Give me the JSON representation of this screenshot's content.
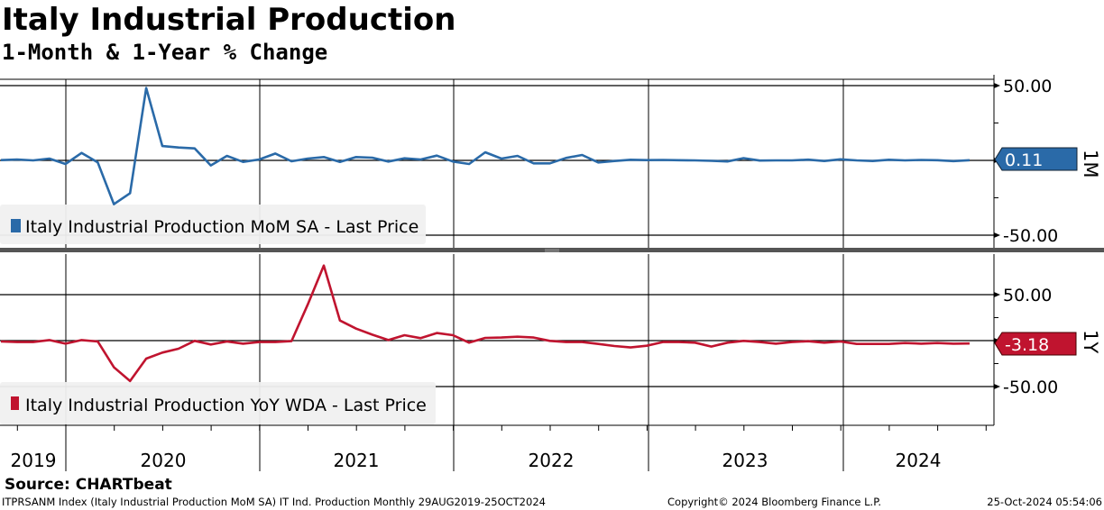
{
  "header": {
    "title": "Italy Industrial Production",
    "subtitle": "1-Month & 1-Year % Change"
  },
  "chart_data": [
    {
      "type": "line",
      "panel": "top",
      "title": "1M",
      "legend": "Italy Industrial Production MoM SA - Last Price",
      "color": "#2a6aa8",
      "yticks": [
        "50.00",
        "-50.00"
      ],
      "ytick_values": [
        50,
        -50
      ],
      "ylim": [
        -60,
        55
      ],
      "last_value_label": "0.11",
      "x_start": "Sep 2019",
      "frequency": "monthly",
      "values": [
        0.2,
        0.6,
        0.0,
        1.2,
        -2.4,
        5.0,
        -1.4,
        -29.3,
        -21.9,
        48.4,
        9.6,
        8.6,
        8.0,
        -3.4,
        3.0,
        -1.0,
        0.6,
        4.6,
        -0.6,
        1.2,
        2.2,
        -1.0,
        2.2,
        1.8,
        -0.8,
        1.4,
        0.6,
        3.2,
        -0.8,
        -2.4,
        5.4,
        1.2,
        3.0,
        -2.0,
        -2.0,
        1.6,
        3.6,
        -1.4,
        -0.4,
        0.4,
        0.2,
        0.3,
        0.1,
        0.0,
        -0.3,
        -0.7,
        1.5,
        -0.1,
        0.0,
        0.0,
        0.5,
        -0.4,
        0.7,
        0.0,
        -0.4,
        0.4,
        0.0,
        0.3,
        0.1,
        -0.5,
        0.11
      ]
    },
    {
      "type": "line",
      "panel": "bottom",
      "title": "1Y",
      "legend": "Italy Industrial Production YoY WDA - Last Price",
      "color": "#c0142f",
      "yticks": [
        "50.00",
        "-50.00"
      ],
      "ytick_values": [
        50,
        -50
      ],
      "ylim": [
        -92,
        92
      ],
      "last_value_label": "-3.18",
      "x_start": "Sep 2019",
      "frequency": "monthly",
      "values": [
        -1.0,
        -1.6,
        -1.6,
        0.6,
        -3.3,
        0.6,
        -1.0,
        -29.0,
        -44.0,
        -19.6,
        -13.0,
        -8.8,
        -0.3,
        -4.2,
        -1.0,
        -3.3,
        -1.6,
        -1.6,
        -0.6,
        39.0,
        81.7,
        21.9,
        13.0,
        6.5,
        0.6,
        5.9,
        2.6,
        8.2,
        5.9,
        -2.3,
        2.9,
        3.3,
        4.2,
        3.3,
        -0.3,
        -1.6,
        -1.6,
        -3.6,
        -5.9,
        -7.5,
        -5.6,
        -1.6,
        -1.6,
        -2.3,
        -6.5,
        -2.3,
        -0.3,
        -1.6,
        -3.3,
        -1.6,
        -0.7,
        -2.3,
        -1.0,
        -3.6,
        -3.6,
        -3.6,
        -2.6,
        -3.3,
        -2.6,
        -3.3,
        -3.18
      ]
    }
  ],
  "x_axis": {
    "year_labels": [
      "2019",
      "2020",
      "2021",
      "2022",
      "2023",
      "2024"
    ]
  },
  "source": "Source: CHARTbeat",
  "footer": {
    "left": "ITPRSANM Index (Italy Industrial Production MoM SA) IT Ind. Production  Monthly 29AUG2019-25OCT2024",
    "center": "Copyright© 2024 Bloomberg Finance L.P.",
    "right": "25-Oct-2024 05:54:06"
  }
}
